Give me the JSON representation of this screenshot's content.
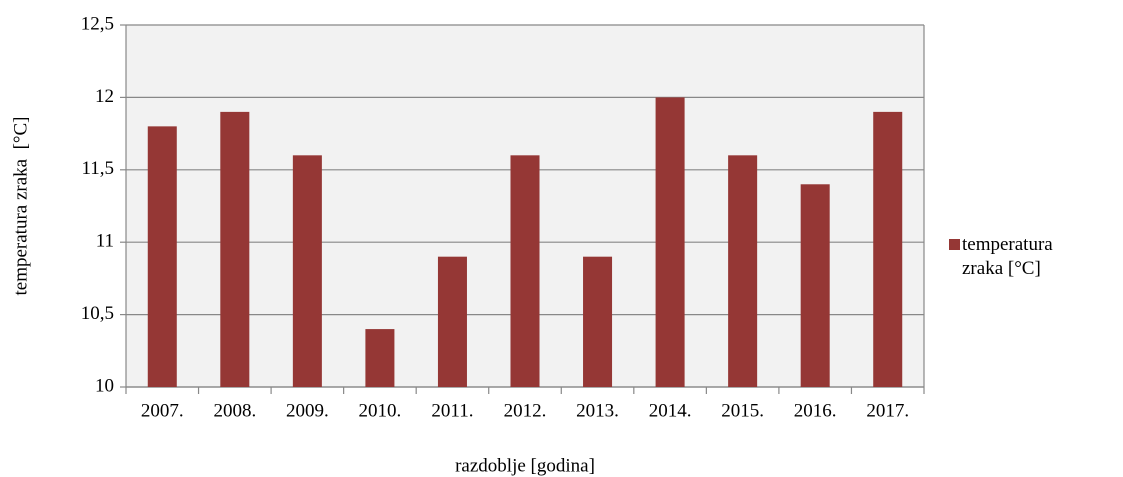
{
  "chart_data": {
    "type": "bar",
    "x_label": "razdoblje [godina]",
    "y_label": "temperatura zraka  [°C]",
    "categories": [
      "2007.",
      "2008.",
      "2009.",
      "2010.",
      "2011.",
      "2012.",
      "2013.",
      "2014.",
      "2015.",
      "2016.",
      "2017."
    ],
    "series": [
      {
        "name": "temperatura zraka [°C]",
        "color": "#953735",
        "values": [
          11.8,
          11.9,
          11.6,
          10.4,
          10.9,
          11.6,
          10.9,
          12.0,
          11.6,
          11.4,
          11.9
        ]
      }
    ],
    "ylim": [
      10,
      12.5
    ],
    "yticks": [
      10,
      {
        "value": 10.5,
        "label": "10,5"
      },
      11,
      {
        "value": 11.5,
        "label": "11,5"
      },
      12,
      {
        "value": 12.5,
        "label": "12,5"
      }
    ],
    "grid": true,
    "legend": "right"
  }
}
